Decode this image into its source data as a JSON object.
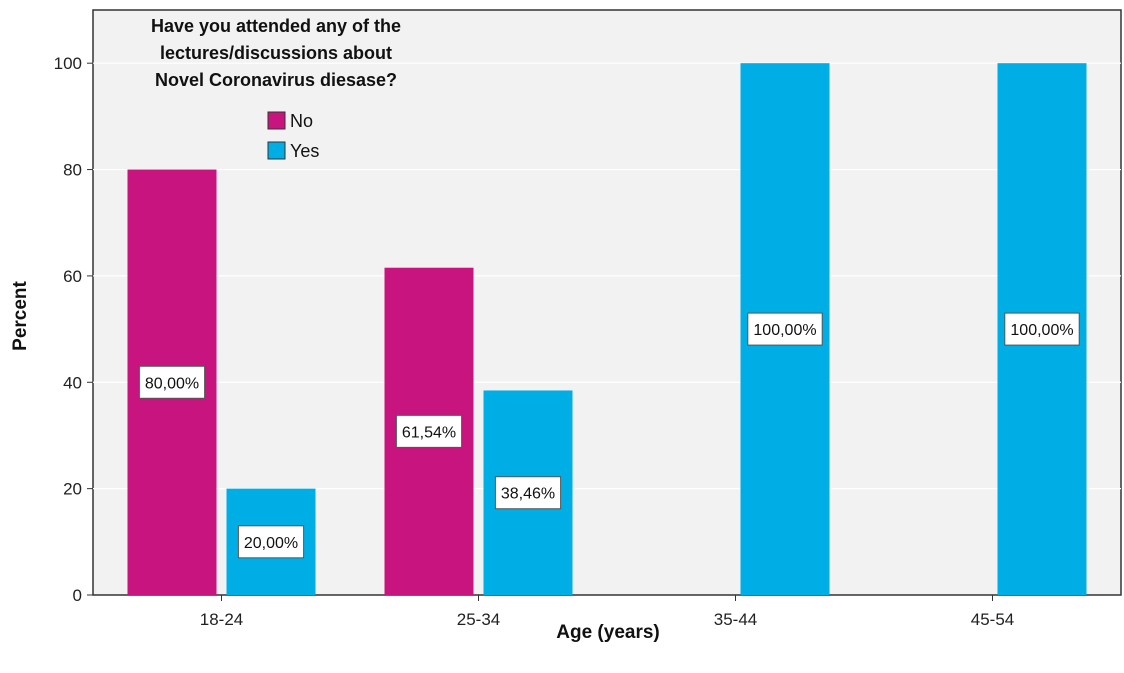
{
  "chart_data": {
    "type": "bar",
    "title_lines": [
      "Have you attended any of the",
      "lectures/discussions about",
      "Novel Coronavirus diesase?"
    ],
    "xlabel": "Age (years)",
    "ylabel": "Percent",
    "categories": [
      "18-24",
      "25-34",
      "35-44",
      "45-54"
    ],
    "yticks": [
      "0",
      "20",
      "40",
      "60",
      "80",
      "100"
    ],
    "ylim": [
      0,
      110
    ],
    "grid": true,
    "legend_position": "top-left",
    "series": [
      {
        "name": "No",
        "color": "#c8147e",
        "values": [
          80.0,
          61.54,
          null,
          null
        ],
        "labels": [
          "80,00%",
          "61,54%",
          null,
          null
        ]
      },
      {
        "name": "Yes",
        "color": "#00aee6",
        "values": [
          20.0,
          38.46,
          100.0,
          100.0
        ],
        "labels": [
          "20,00%",
          "38,46%",
          "100,00%",
          "100,00%"
        ]
      }
    ],
    "colors": {
      "plot_background": "#f2f2f2",
      "gridline": "#ffffff"
    }
  }
}
